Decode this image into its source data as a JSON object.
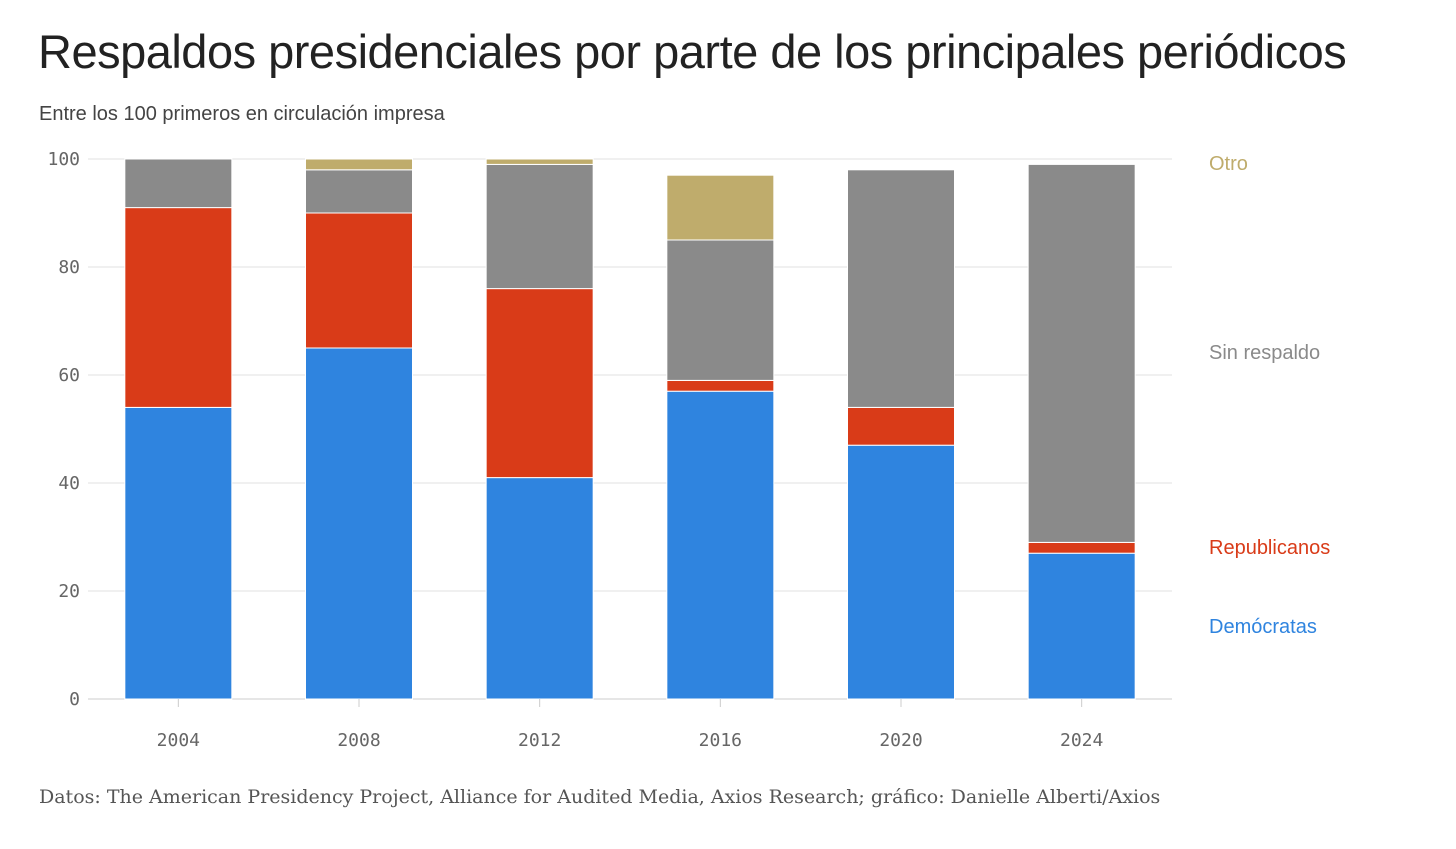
{
  "chart_data": {
    "type": "bar",
    "stacked": true,
    "title": "Respaldos presidenciales por parte de los principales periódicos",
    "subtitle": "Entre los 100 primeros en circulación impresa",
    "source": "Datos: The American Presidency Project, Alliance for Audited Media, Axios Research; gráfico: Danielle Alberti/Axios",
    "xlabel": "",
    "ylabel": "",
    "ylim": [
      0,
      100
    ],
    "yticks": [
      0,
      20,
      40,
      60,
      80,
      100
    ],
    "grid": true,
    "legend_placement": "right",
    "categories": [
      "2004",
      "2008",
      "2012",
      "2016",
      "2020",
      "2024"
    ],
    "series": [
      {
        "name": "Demócratas",
        "color": "#2f84df",
        "values": [
          54,
          65,
          41,
          57,
          47,
          27
        ]
      },
      {
        "name": "Republicanos",
        "color": "#d93b18",
        "values": [
          37,
          25,
          35,
          2,
          7,
          2
        ]
      },
      {
        "name": "Sin respaldo",
        "color": "#8a8a8a",
        "values": [
          9,
          8,
          23,
          26,
          44,
          70
        ]
      },
      {
        "name": "Otro",
        "color": "#bfac6c",
        "values": [
          0,
          2,
          1,
          12,
          0,
          0
        ]
      }
    ]
  }
}
